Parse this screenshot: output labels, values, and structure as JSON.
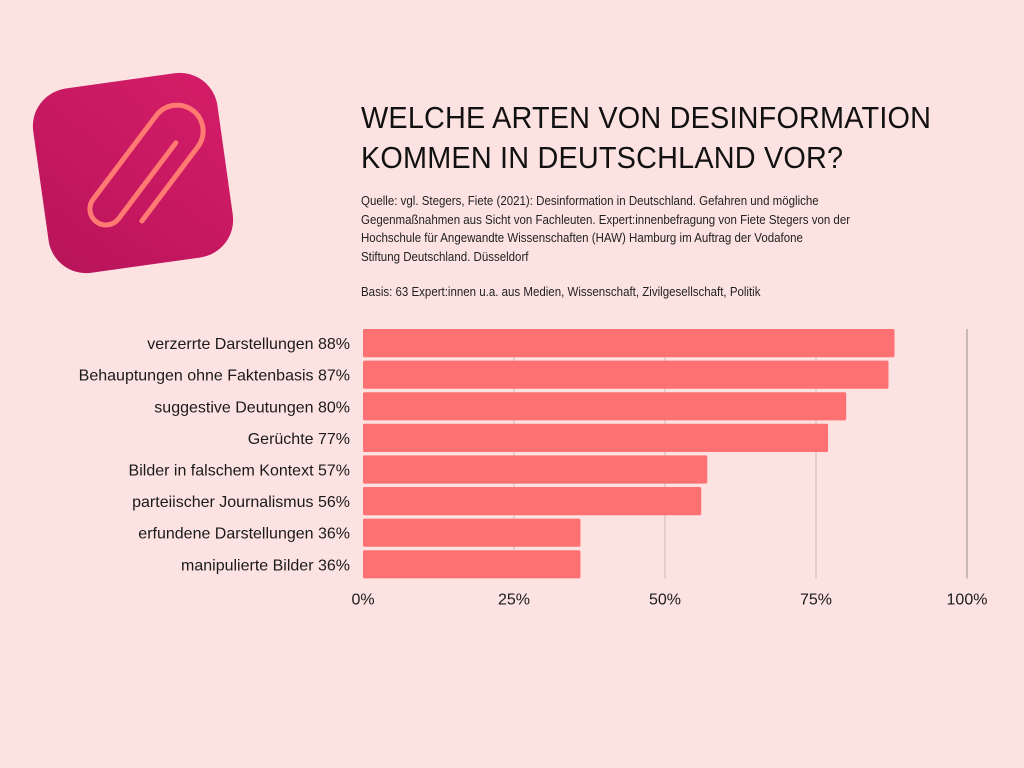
{
  "header": {
    "title_line1": "WELCHE ARTEN VON DESINFORMATION",
    "title_line2": "KOMMEN IN DEUTSCHLAND VOR?",
    "source_lines": [
      "Quelle: vgl. Stegers, Fiete (2021): Desinformation in Deutschland. Gefahren und mögliche",
      "Gegenmaßnahmen aus Sicht von Fachleuten. Expert:innenbefragung von Fiete Stegers von der",
      "Hochschule für Angewandte Wissenschaften (HAW) Hamburg im Auftrag der Vodafone",
      "Stiftung Deutschland. Düsseldorf"
    ],
    "basis": "Basis: 63 Expert:innen u.a. aus Medien, Wissenschaft, Zivilgesellschaft, Politik"
  },
  "logo": {
    "icon": "paperclip-icon",
    "bg_color": "#cc1a62",
    "clip_color": "#ff7a72"
  },
  "colors": {
    "background": "#fde2e2",
    "bar": "#fe7173",
    "grid": "#c9b8b8"
  },
  "chart_data": {
    "type": "bar",
    "orientation": "horizontal",
    "title": "WELCHE ARTEN VON DESINFORMATION KOMMEN IN DEUTSCHLAND VOR?",
    "categories": [
      "verzerrte Darstellungen 88%",
      "Behauptungen ohne Faktenbasis 87%",
      "suggestive Deutungen 80%",
      "Gerüchte 77%",
      "Bilder in falschem Kontext 57%",
      "parteiischer Journalismus 56%",
      "erfundene Darstellungen 36%",
      "manipulierte Bilder 36%"
    ],
    "values": [
      88,
      87,
      80,
      77,
      57,
      56,
      36,
      36
    ],
    "xlabel": "",
    "ylabel": "",
    "xlim": [
      0,
      100
    ],
    "xticks": [
      0,
      25,
      50,
      75,
      100
    ],
    "xtick_labels": [
      "0%",
      "25%",
      "50%",
      "75%",
      "100%"
    ],
    "grid": true,
    "legend": "none"
  }
}
